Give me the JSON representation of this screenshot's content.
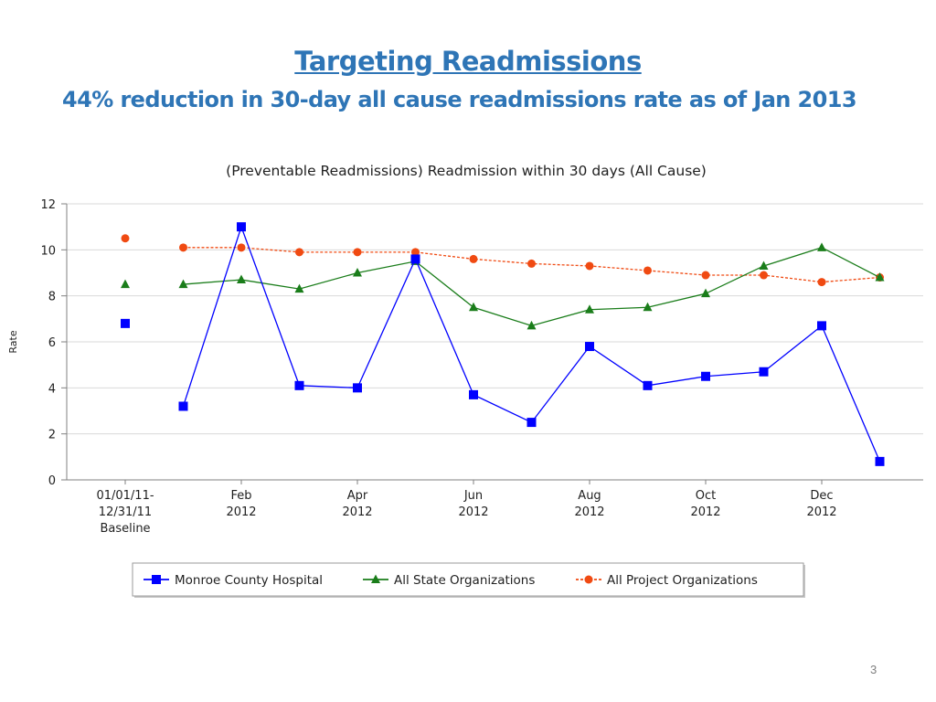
{
  "slide": {
    "title": "Targeting Readmissions",
    "subtitle": "44% reduction in 30-day all cause readmissions rate as of Jan 2013",
    "page_number": "3"
  },
  "colors": {
    "title": "#2e75b6",
    "monroe": "#0000ff",
    "state": "#1a7d1a",
    "project": "#f04a12",
    "grid": "#d9d9d9",
    "axis": "#808080"
  },
  "chart_data": {
    "type": "line",
    "title": "(Preventable Readmissions) Readmission within 30 days (All Cause)",
    "ylabel": "Rate",
    "xlabel": "",
    "ylim": [
      0,
      12
    ],
    "yticks": [
      "0",
      "2",
      "4",
      "6",
      "8",
      "10",
      "12"
    ],
    "grid": true,
    "legend_position": "bottom",
    "categories": [
      [
        "01/01/11-",
        "12/31/11",
        "Baseline"
      ],
      [],
      [
        "Feb",
        "2012"
      ],
      [],
      [
        "Apr",
        "2012"
      ],
      [],
      [
        "Jun",
        "2012"
      ],
      [],
      [
        "Aug",
        "2012"
      ],
      [],
      [
        "Oct",
        "2012"
      ],
      [],
      [
        "Dec",
        "2012"
      ],
      []
    ],
    "series": [
      {
        "name": "Monroe County Hospital",
        "marker": "square",
        "dashed": false,
        "values": [
          6.8,
          3.2,
          11.0,
          4.1,
          4.0,
          9.6,
          3.7,
          2.5,
          5.8,
          4.1,
          4.5,
          4.7,
          6.7,
          0.8
        ]
      },
      {
        "name": "All State Organizations",
        "marker": "triangle",
        "dashed": false,
        "values": [
          8.5,
          8.5,
          8.7,
          8.3,
          9.0,
          9.5,
          7.5,
          6.7,
          7.4,
          7.5,
          8.1,
          9.3,
          10.1,
          8.8
        ]
      },
      {
        "name": "All Project Organizations",
        "marker": "circle",
        "dashed": true,
        "values": [
          10.5,
          10.1,
          10.1,
          9.9,
          9.9,
          9.9,
          9.6,
          9.4,
          9.3,
          9.1,
          8.9,
          8.9,
          8.6,
          8.8
        ]
      }
    ]
  }
}
